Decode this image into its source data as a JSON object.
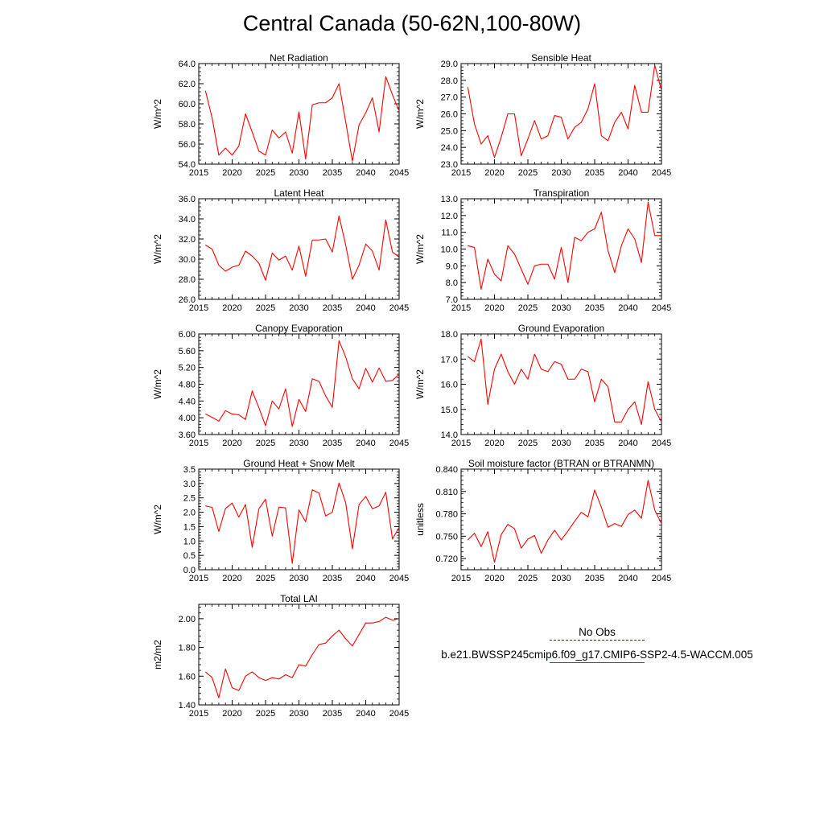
{
  "page": {
    "title": "Central Canada (50-62N,100-80W)"
  },
  "legend": {
    "obs_label": "No Obs",
    "model_label": "b.e21.BWSSP245cmip6.f09_g17.CMIP6-SSP2-4.5-WACCM.005",
    "obs_color": "#1e1aa6",
    "model_color": "#ff0000"
  },
  "chart_data": [
    {
      "type": "line",
      "title": "Net Radiation",
      "ylabel": "W/m^2",
      "xlim": [
        2015,
        2045
      ],
      "xticks": [
        "2015",
        "2020",
        "2025",
        "2030",
        "2035",
        "2040",
        "2045"
      ],
      "ylim": [
        54.0,
        64.0
      ],
      "yticks": [
        "54.0",
        "56.0",
        "58.0",
        "60.0",
        "62.0",
        "64.0"
      ],
      "x": [
        2016,
        2017,
        2018,
        2019,
        2020,
        2021,
        2022,
        2023,
        2024,
        2025,
        2026,
        2027,
        2028,
        2029,
        2030,
        2031,
        2032,
        2033,
        2034,
        2035,
        2036,
        2037,
        2038,
        2039,
        2040,
        2041,
        2042,
        2043,
        2044,
        2045
      ],
      "series": [
        {
          "color": "#ff0000",
          "values": [
            61.3,
            58.6,
            54.9,
            55.6,
            54.9,
            55.8,
            59.0,
            57.2,
            55.3,
            54.9,
            57.4,
            56.6,
            57.2,
            55.1,
            59.2,
            54.5,
            59.9,
            60.1,
            60.1,
            60.6,
            62.0,
            58.2,
            54.3,
            57.9,
            59.1,
            60.6,
            57.2,
            62.7,
            60.9,
            59.3
          ]
        }
      ]
    },
    {
      "type": "line",
      "title": "Sensible Heat",
      "ylabel": "W/m^2",
      "xlim": [
        2015,
        2045
      ],
      "xticks": [
        "2015",
        "2020",
        "2025",
        "2030",
        "2035",
        "2040",
        "2045"
      ],
      "ylim": [
        23.0,
        29.0
      ],
      "yticks": [
        "23.0",
        "24.0",
        "25.0",
        "26.0",
        "27.0",
        "28.0",
        "29.0"
      ],
      "x": [
        2016,
        2017,
        2018,
        2019,
        2020,
        2021,
        2022,
        2023,
        2024,
        2025,
        2026,
        2027,
        2028,
        2029,
        2030,
        2031,
        2032,
        2033,
        2034,
        2035,
        2036,
        2037,
        2038,
        2039,
        2040,
        2041,
        2042,
        2043,
        2044,
        2045
      ],
      "series": [
        {
          "color": "#ff0000",
          "values": [
            27.6,
            25.4,
            24.2,
            24.7,
            23.4,
            24.6,
            26.0,
            26.0,
            23.5,
            24.5,
            25.6,
            24.5,
            24.7,
            25.9,
            25.8,
            24.5,
            25.2,
            25.5,
            26.3,
            27.8,
            24.7,
            24.4,
            25.5,
            26.1,
            25.1,
            27.7,
            26.1,
            26.1,
            28.9,
            27.4
          ]
        }
      ]
    },
    {
      "type": "line",
      "title": "Latent Heat",
      "ylabel": "W/m^2",
      "xlim": [
        2015,
        2045
      ],
      "xticks": [
        "2015",
        "2020",
        "2025",
        "2030",
        "2035",
        "2040",
        "2045"
      ],
      "ylim": [
        26.0,
        36.0
      ],
      "yticks": [
        "26.0",
        "28.0",
        "30.0",
        "32.0",
        "34.0",
        "36.0"
      ],
      "x": [
        2016,
        2017,
        2018,
        2019,
        2020,
        2021,
        2022,
        2023,
        2024,
        2025,
        2026,
        2027,
        2028,
        2029,
        2030,
        2031,
        2032,
        2033,
        2034,
        2035,
        2036,
        2037,
        2038,
        2039,
        2040,
        2041,
        2042,
        2043,
        2044,
        2045
      ],
      "series": [
        {
          "color": "#ff0000",
          "values": [
            31.4,
            31.0,
            29.4,
            28.8,
            29.2,
            29.4,
            30.8,
            30.3,
            29.6,
            27.9,
            30.6,
            29.9,
            30.3,
            28.9,
            31.3,
            28.3,
            31.9,
            31.9,
            32.0,
            30.7,
            34.3,
            31.4,
            28.0,
            29.4,
            31.5,
            30.8,
            28.9,
            33.9,
            30.7,
            30.2
          ]
        }
      ]
    },
    {
      "type": "line",
      "title": "Transpiration",
      "ylabel": "W/m^2",
      "xlim": [
        2015,
        2045
      ],
      "xticks": [
        "2015",
        "2020",
        "2025",
        "2030",
        "2035",
        "2040",
        "2045"
      ],
      "ylim": [
        7.0,
        13.0
      ],
      "yticks": [
        "7.0",
        "8.0",
        "9.0",
        "10.0",
        "11.0",
        "12.0",
        "13.0"
      ],
      "x": [
        2016,
        2017,
        2018,
        2019,
        2020,
        2021,
        2022,
        2023,
        2024,
        2025,
        2026,
        2027,
        2028,
        2029,
        2030,
        2031,
        2032,
        2033,
        2034,
        2035,
        2036,
        2037,
        2038,
        2039,
        2040,
        2041,
        2042,
        2043,
        2044,
        2045
      ],
      "series": [
        {
          "color": "#ff0000",
          "values": [
            10.2,
            10.1,
            7.6,
            9.4,
            8.5,
            8.1,
            10.2,
            9.7,
            8.8,
            7.9,
            9.0,
            9.1,
            9.1,
            8.2,
            10.1,
            8.0,
            10.7,
            10.5,
            11.0,
            11.2,
            12.2,
            9.9,
            8.6,
            10.2,
            11.2,
            10.6,
            9.2,
            12.8,
            10.8,
            10.8
          ]
        }
      ]
    },
    {
      "type": "line",
      "title": "Canopy Evaporation",
      "ylabel": "W/m^2",
      "xlim": [
        2015,
        2045
      ],
      "xticks": [
        "2015",
        "2020",
        "2025",
        "2030",
        "2035",
        "2040",
        "2045"
      ],
      "ylim": [
        3.6,
        6.0
      ],
      "yticks": [
        "3.60",
        "4.00",
        "4.40",
        "4.80",
        "5.20",
        "5.60",
        "6.00"
      ],
      "x": [
        2016,
        2017,
        2018,
        2019,
        2020,
        2021,
        2022,
        2023,
        2024,
        2025,
        2026,
        2027,
        2028,
        2029,
        2030,
        2031,
        2032,
        2033,
        2034,
        2035,
        2036,
        2037,
        2038,
        2039,
        2040,
        2041,
        2042,
        2043,
        2044,
        2045
      ],
      "series": [
        {
          "color": "#ff0000",
          "values": [
            4.09,
            4.01,
            3.92,
            4.17,
            4.09,
            4.07,
            3.96,
            4.64,
            4.24,
            3.81,
            4.4,
            4.21,
            4.69,
            3.79,
            4.44,
            4.15,
            4.93,
            4.87,
            4.52,
            4.25,
            5.84,
            5.45,
            4.93,
            4.69,
            5.18,
            4.85,
            5.19,
            4.87,
            4.89,
            5.04
          ]
        }
      ]
    },
    {
      "type": "line",
      "title": "Ground Evaporation",
      "ylabel": "W/m^2",
      "xlim": [
        2015,
        2045
      ],
      "xticks": [
        "2015",
        "2020",
        "2025",
        "2030",
        "2035",
        "2040",
        "2045"
      ],
      "ylim": [
        14.0,
        18.0
      ],
      "yticks": [
        "14.0",
        "15.0",
        "16.0",
        "17.0",
        "18.0"
      ],
      "x": [
        2016,
        2017,
        2018,
        2019,
        2020,
        2021,
        2022,
        2023,
        2024,
        2025,
        2026,
        2027,
        2028,
        2029,
        2030,
        2031,
        2032,
        2033,
        2034,
        2035,
        2036,
        2037,
        2038,
        2039,
        2040,
        2041,
        2042,
        2043,
        2044,
        2045
      ],
      "series": [
        {
          "color": "#ff0000",
          "values": [
            17.1,
            16.9,
            17.8,
            15.2,
            16.6,
            17.2,
            16.5,
            16.0,
            16.6,
            16.2,
            17.2,
            16.6,
            16.5,
            16.9,
            16.8,
            16.2,
            16.2,
            16.6,
            16.5,
            15.3,
            16.2,
            15.9,
            14.5,
            14.5,
            15.0,
            15.3,
            14.4,
            16.1,
            15.0,
            14.5
          ]
        }
      ]
    },
    {
      "type": "line",
      "title": "Ground Heat + Snow Melt",
      "ylabel": "W/m^2",
      "xlim": [
        2015,
        2045
      ],
      "xticks": [
        "2015",
        "2020",
        "2025",
        "2030",
        "2035",
        "2040",
        "2045"
      ],
      "ylim": [
        0.0,
        3.5
      ],
      "yticks": [
        "0.0",
        "0.5",
        "1.0",
        "1.5",
        "2.0",
        "2.5",
        "3.0",
        "3.5"
      ],
      "x": [
        2016,
        2017,
        2018,
        2019,
        2020,
        2021,
        2022,
        2023,
        2024,
        2025,
        2026,
        2027,
        2028,
        2029,
        2030,
        2031,
        2032,
        2033,
        2034,
        2035,
        2036,
        2037,
        2038,
        2039,
        2040,
        2041,
        2042,
        2043,
        2044,
        2045
      ],
      "series": [
        {
          "color": "#ff0000",
          "values": [
            2.22,
            2.17,
            1.33,
            2.13,
            2.32,
            1.83,
            2.27,
            0.78,
            2.12,
            2.45,
            1.17,
            2.18,
            2.15,
            0.22,
            2.08,
            1.67,
            2.78,
            2.67,
            1.87,
            2.0,
            3.02,
            2.33,
            0.73,
            2.27,
            2.55,
            2.12,
            2.22,
            2.7,
            1.07,
            1.47
          ]
        }
      ]
    },
    {
      "type": "line",
      "title": "Soil moisture factor (BTRAN or BTRANMN)",
      "ylabel": "unitless",
      "xlim": [
        2015,
        2045
      ],
      "xticks": [
        "2015",
        "2020",
        "2025",
        "2030",
        "2035",
        "2040",
        "2045"
      ],
      "ylim": [
        0.705,
        0.84
      ],
      "yticks": [
        "0.720",
        "0.750",
        "0.780",
        "0.810",
        "0.840"
      ],
      "x": [
        2016,
        2017,
        2018,
        2019,
        2020,
        2021,
        2022,
        2023,
        2024,
        2025,
        2026,
        2027,
        2028,
        2029,
        2030,
        2031,
        2032,
        2033,
        2034,
        2035,
        2036,
        2037,
        2038,
        2039,
        2040,
        2041,
        2042,
        2043,
        2044,
        2045
      ],
      "series": [
        {
          "color": "#ff0000",
          "values": [
            0.745,
            0.754,
            0.736,
            0.756,
            0.715,
            0.752,
            0.766,
            0.76,
            0.734,
            0.746,
            0.751,
            0.727,
            0.745,
            0.758,
            0.745,
            0.757,
            0.77,
            0.782,
            0.776,
            0.812,
            0.789,
            0.762,
            0.767,
            0.763,
            0.779,
            0.785,
            0.774,
            0.825,
            0.785,
            0.767
          ]
        }
      ]
    },
    {
      "type": "line",
      "title": "Total LAI",
      "ylabel": "m2/m2",
      "xlim": [
        2015,
        2045
      ],
      "xticks": [
        "2015",
        "2020",
        "2025",
        "2030",
        "2035",
        "2040",
        "2045"
      ],
      "ylim": [
        1.4,
        2.1
      ],
      "yticks": [
        "1.40",
        "1.60",
        "1.80",
        "2.00"
      ],
      "x": [
        2016,
        2017,
        2018,
        2019,
        2020,
        2021,
        2022,
        2023,
        2024,
        2025,
        2026,
        2027,
        2028,
        2029,
        2030,
        2031,
        2032,
        2033,
        2034,
        2035,
        2036,
        2037,
        2038,
        2039,
        2040,
        2041,
        2042,
        2043,
        2044,
        2045
      ],
      "series": [
        {
          "color": "#ff0000",
          "values": [
            1.63,
            1.59,
            1.45,
            1.65,
            1.52,
            1.5,
            1.6,
            1.63,
            1.59,
            1.57,
            1.59,
            1.58,
            1.61,
            1.59,
            1.68,
            1.67,
            1.75,
            1.82,
            1.83,
            1.88,
            1.92,
            1.86,
            1.81,
            1.89,
            1.97,
            1.97,
            1.98,
            2.01,
            1.99,
            2.0
          ]
        }
      ]
    }
  ]
}
